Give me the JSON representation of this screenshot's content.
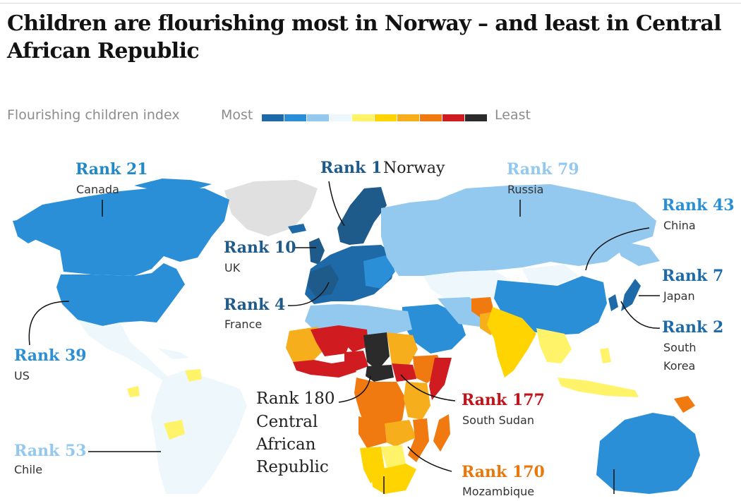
{
  "title": "Children are flourishing most in Norway – and least in Central African Republic",
  "legend": {
    "label": "Flourishing children index",
    "most": "Most",
    "least": "Least",
    "colors": [
      "#1e6aa8",
      "#2a8fd6",
      "#93c9ee",
      "#eef7fc",
      "#fff36a",
      "#ffd400",
      "#f7ae1c",
      "#f07a10",
      "#d01c20",
      "#2b2b2b"
    ]
  },
  "map": {
    "no_data_color": "#e0e0e0",
    "ocean_color": "#ffffff"
  },
  "annotations": [
    {
      "rank": "Rank 21",
      "country": "Canada",
      "color": "#2289c6"
    },
    {
      "rank": "Rank 1",
      "country": "Norway",
      "color": "#1e5a8a"
    },
    {
      "rank": "Rank 79",
      "country": "Russia",
      "color": "#93c9ee"
    },
    {
      "rank": "Rank 43",
      "country": "China",
      "color": "#2a8fd6"
    },
    {
      "rank": "Rank 10",
      "country": "UK",
      "color": "#1e5a8a"
    },
    {
      "rank": "Rank 7",
      "country": "Japan",
      "color": "#1e6aa8"
    },
    {
      "rank": "Rank 4",
      "country": "France",
      "color": "#1e5a8a"
    },
    {
      "rank": "Rank 2",
      "country": "South Korea",
      "color": "#1e6aa8"
    },
    {
      "rank": "Rank 39",
      "country": "US",
      "color": "#2a8fd6"
    },
    {
      "rank": "Rank 180",
      "country": "Central African Republic",
      "color": "#222222"
    },
    {
      "rank": "Rank 177",
      "country": "South Sudan",
      "color": "#c0141c"
    },
    {
      "rank": "Rank 53",
      "country": "Chile",
      "color": "#93c9ee"
    },
    {
      "rank": "Rank 170",
      "country": "Mozambique",
      "color": "#e8770c"
    }
  ]
}
